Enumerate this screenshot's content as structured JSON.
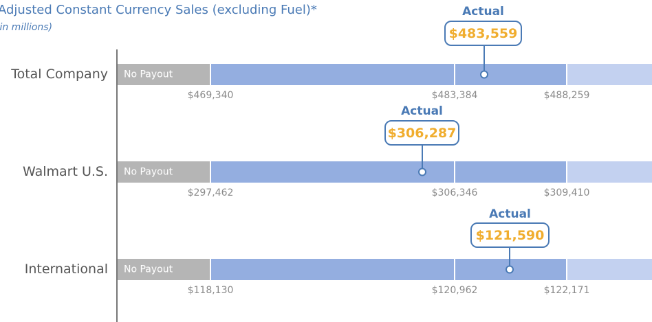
{
  "header": {
    "title": "Adjusted Constant Currency Sales (excluding Fuel)*",
    "subtitle": "(in millions)"
  },
  "rows": [
    {
      "label": "Total Company",
      "no_payout": "No Payout",
      "thresholds": [
        "$469,340",
        "$483,384",
        "$488,259"
      ],
      "actual_label": "Actual",
      "actual": "$483,559"
    },
    {
      "label": "Walmart U.S.",
      "no_payout": "No Payout",
      "thresholds": [
        "$297,462",
        "$306,346",
        "$309,410"
      ],
      "actual_label": "Actual",
      "actual": "$306,287"
    },
    {
      "label": "International",
      "no_payout": "No Payout",
      "thresholds": [
        "$118,130",
        "$120,962",
        "$122,171"
      ],
      "actual_label": "Actual",
      "actual": "$121,590"
    }
  ]
}
